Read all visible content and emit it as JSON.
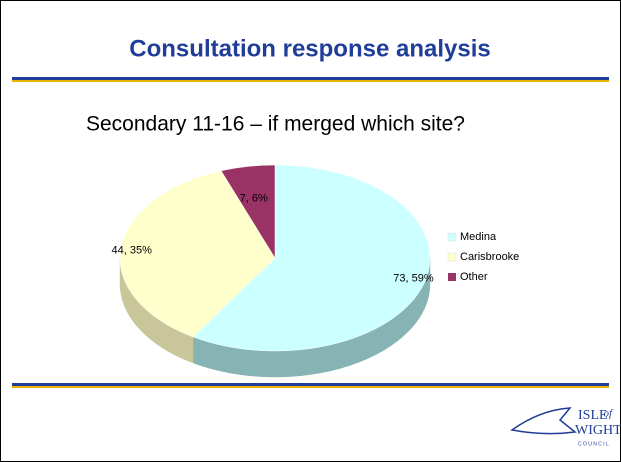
{
  "chart_data": {
    "type": "pie3d",
    "title": "Consultation response analysis",
    "subtitle": "Secondary 11-16 – if merged which site?",
    "categories": [
      "Medina",
      "Carisbrooke",
      "Other"
    ],
    "values": [
      73,
      44,
      7
    ],
    "value_labels": [
      "73, 59%",
      "44, 35%",
      "7, 6%"
    ],
    "colors": [
      "#ccffff",
      "#ffffcc",
      "#993366"
    ],
    "side_colors": [
      "#86b3b3",
      "#c9c79a",
      "#6e2449"
    ],
    "legend": "right"
  },
  "logo": {
    "isle": "ISLE",
    "of": "of",
    "wight": "WIGHT",
    "council": "C O U N C I L"
  }
}
